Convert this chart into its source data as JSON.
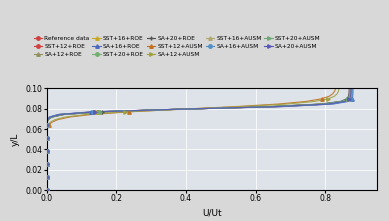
{
  "xlabel": "U/Ut",
  "ylabel": "y/L",
  "xlim": [
    0,
    0.95
  ],
  "ylim": [
    0.0,
    0.1
  ],
  "yticks": [
    0.0,
    0.02,
    0.04,
    0.06,
    0.08,
    0.1
  ],
  "xticks": [
    0,
    0.2,
    0.4,
    0.6,
    0.8
  ],
  "background_color": "#dde3e8",
  "fig_color": "#d8d8d8",
  "legend_entries": [
    {
      "label": "Reference data",
      "color": "#d04040",
      "marker": "o",
      "ms": 2.5,
      "lw": 0.8
    },
    {
      "label": "SST+12+ROE",
      "color": "#d04040",
      "marker": "o",
      "ms": 2.5,
      "lw": 0.8
    },
    {
      "label": "SA+12+ROE",
      "color": "#909060",
      "marker": "^",
      "ms": 2.5,
      "lw": 0.8
    },
    {
      "label": "SST+16+ROE",
      "color": "#c8a820",
      "marker": "^",
      "ms": 2.5,
      "lw": 0.8
    },
    {
      "label": "SA+16+ROE",
      "color": "#4868c0",
      "marker": "^",
      "ms": 2.5,
      "lw": 0.8
    },
    {
      "label": "SST+20+ROE",
      "color": "#70b070",
      "marker": "o",
      "ms": 2.5,
      "lw": 0.8
    },
    {
      "label": "SA+20+ROE",
      "color": "#505050",
      "marker": "+",
      "ms": 3.0,
      "lw": 0.8
    },
    {
      "label": "SST+12+AUSM",
      "color": "#c07020",
      "marker": "^",
      "ms": 2.5,
      "lw": 0.8
    },
    {
      "label": "SA+12+AUSM",
      "color": "#a0a040",
      "marker": ">",
      "ms": 2.5,
      "lw": 0.8
    },
    {
      "label": "SST+16+AUSM",
      "color": "#b0a870",
      "marker": "^",
      "ms": 2.5,
      "lw": 0.8
    },
    {
      "label": "SA+16+AUSM",
      "color": "#5090c8",
      "marker": "o",
      "ms": 2.5,
      "lw": 0.8
    },
    {
      "label": "SST+20+AUSM",
      "color": "#70a878",
      "marker": ">",
      "ms": 2.5,
      "lw": 0.8
    },
    {
      "label": "SA+20+AUSM",
      "color": "#5858b8",
      "marker": ">",
      "ms": 2.5,
      "lw": 0.8
    }
  ],
  "profiles": [
    {
      "u_edge": 0.875,
      "k": 55,
      "label": "Reference data"
    },
    {
      "u_edge": 0.87,
      "k": 52,
      "label": "SST+12+ROE"
    },
    {
      "u_edge": 0.872,
      "k": 50,
      "label": "SA+12+ROE"
    },
    {
      "u_edge": 0.873,
      "k": 53,
      "label": "SST+16+ROE"
    },
    {
      "u_edge": 0.88,
      "k": 58,
      "label": "SA+16+ROE"
    },
    {
      "u_edge": 0.871,
      "k": 51,
      "label": "SST+20+ROE"
    },
    {
      "u_edge": 0.869,
      "k": 49,
      "label": "SA+20+ROE"
    },
    {
      "u_edge": 0.83,
      "k": 30,
      "label": "SST+12+AUSM"
    },
    {
      "u_edge": 0.84,
      "k": 33,
      "label": "SA+12+AUSM"
    },
    {
      "u_edge": 0.872,
      "k": 51,
      "label": "SST+16+AUSM"
    },
    {
      "u_edge": 0.878,
      "k": 56,
      "label": "SA+16+AUSM"
    },
    {
      "u_edge": 0.871,
      "k": 50,
      "label": "SST+20+AUSM"
    },
    {
      "u_edge": 0.874,
      "k": 54,
      "label": "SA+20+AUSM"
    }
  ]
}
